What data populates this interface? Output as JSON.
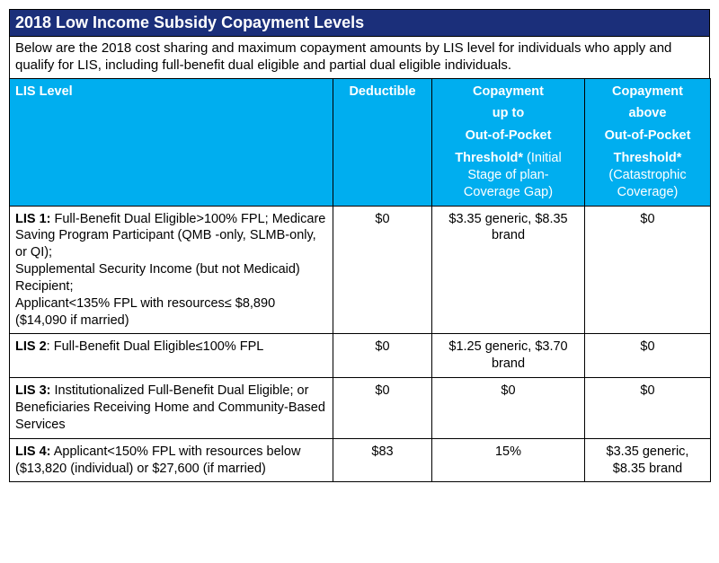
{
  "title": "2018 Low Income Subsidy Copayment Levels",
  "intro": "Below are the 2018 cost sharing and maximum copayment amounts by LIS level for individuals who apply and qualify for LIS, including full-benefit dual eligible and partial dual eligible individuals.",
  "columns": {
    "lis": "LIS Level",
    "deductible": "Deductible",
    "copay_upto": {
      "l1": "Copayment",
      "l2": "up to",
      "l3": "Out-of-Pocket",
      "l4a": "Threshold*",
      "l4b": "(Initial Stage of plan- Coverage Gap)"
    },
    "copay_above": {
      "l1": "Copayment",
      "l2": "above",
      "l3": "Out-of-Pocket",
      "l4a": "Threshold*",
      "l4b": "(Catastrophic Coverage)"
    }
  },
  "rows": [
    {
      "label_bold": "LIS 1:",
      "label_rest_1": " Full-Benefit Dual Eligible>100% FPL; Medicare Saving Program Participant (QMB -only, SLMB-only, or QI);",
      "label_rest_2": "Supplemental Security Income (but not Medicaid) Recipient;",
      "label_rest_3": "Applicant<135% FPL with resources≤ $8,890 ($14,090 if married)",
      "deductible": "$0",
      "copay_upto": "$3.35 generic, $8.35 brand",
      "copay_above": "$0"
    },
    {
      "label_bold": "LIS 2",
      "label_rest_1": ": Full-Benefit Dual Eligible≤100% FPL",
      "label_rest_2": "",
      "label_rest_3": "",
      "deductible": "$0",
      "copay_upto": "$1.25 generic, $3.70 brand",
      "copay_above": "$0"
    },
    {
      "label_bold": "LIS 3:",
      "label_rest_1": " Institutionalized Full-Benefit Dual Eligible; or Beneficiaries Receiving Home and Community-Based Services",
      "label_rest_2": "",
      "label_rest_3": "",
      "deductible": "$0",
      "copay_upto": "$0",
      "copay_above": "$0"
    },
    {
      "label_bold": "LIS 4:",
      "label_rest_1": " Applicant<150% FPL with resources below ($13,820 (individual) or $27,600 (if married)",
      "label_rest_2": "",
      "label_rest_3": "",
      "deductible": "$83",
      "copay_upto": "15%",
      "copay_above": "$3.35 generic, $8.35 brand"
    }
  ],
  "col_widths": {
    "lis": "360px",
    "deductible": "110px",
    "upto": "170px",
    "above": "140px"
  }
}
